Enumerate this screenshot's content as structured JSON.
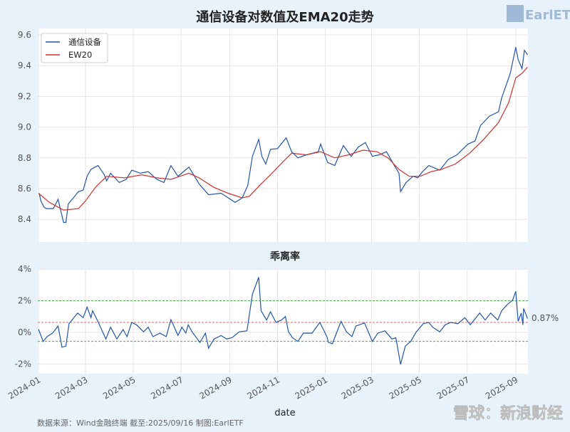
{
  "chart_data": [
    {
      "type": "line",
      "title": "通信设备对数值及EMA20走势",
      "ylim": [
        8.25,
        9.64
      ],
      "yticks": [
        "8.4",
        "8.6",
        "8.8",
        "9.0",
        "9.2",
        "9.4",
        "9.6"
      ],
      "ytick_values": [
        8.4,
        8.6,
        8.8,
        9.0,
        9.2,
        9.4,
        9.6
      ],
      "grid": true,
      "legend_position": "top-left",
      "series": [
        {
          "name": "通信设备",
          "color": "#2255aa",
          "points": [
            [
              "2024-01-02",
              8.57
            ],
            [
              "2024-01-04",
              8.52
            ],
            [
              "2024-01-08",
              8.48
            ],
            [
              "2024-01-11",
              8.47
            ],
            [
              "2024-01-20",
              8.47
            ],
            [
              "2024-01-26",
              8.53
            ],
            [
              "2024-02-02",
              8.38
            ],
            [
              "2024-02-05",
              8.38
            ],
            [
              "2024-02-08",
              8.5
            ],
            [
              "2024-02-21",
              8.58
            ],
            [
              "2024-02-27",
              8.59
            ],
            [
              "2024-03-03",
              8.68
            ],
            [
              "2024-03-08",
              8.725
            ],
            [
              "2024-03-17",
              8.75
            ],
            [
              "2024-03-25",
              8.69
            ],
            [
              "2024-03-28",
              8.65
            ],
            [
              "2024-04-02",
              8.7
            ],
            [
              "2024-04-13",
              8.64
            ],
            [
              "2024-04-22",
              8.66
            ],
            [
              "2024-04-29",
              8.72
            ],
            [
              "2024-05-10",
              8.7
            ],
            [
              "2024-05-20",
              8.71
            ],
            [
              "2024-05-31",
              8.66
            ],
            [
              "2024-06-09",
              8.64
            ],
            [
              "2024-06-18",
              8.75
            ],
            [
              "2024-06-27",
              8.68
            ],
            [
              "2024-07-11",
              8.74
            ],
            [
              "2024-07-24",
              8.63
            ],
            [
              "2024-08-05",
              8.56
            ],
            [
              "2024-08-21",
              8.57
            ],
            [
              "2024-09-08",
              8.51
            ],
            [
              "2024-09-17",
              8.54
            ],
            [
              "2024-09-24",
              8.62
            ],
            [
              "2024-09-30",
              8.81
            ],
            [
              "2024-10-08",
              8.92
            ],
            [
              "2024-10-12",
              8.81
            ],
            [
              "2024-10-17",
              8.76
            ],
            [
              "2024-10-23",
              8.855
            ],
            [
              "2024-11-01",
              8.86
            ],
            [
              "2024-11-12",
              8.93
            ],
            [
              "2024-11-19",
              8.84
            ],
            [
              "2024-11-27",
              8.8
            ],
            [
              "2024-12-08",
              8.82
            ],
            [
              "2024-12-23",
              8.84
            ],
            [
              "2024-12-26",
              8.89
            ],
            [
              "2025-01-04",
              8.77
            ],
            [
              "2025-01-13",
              8.75
            ],
            [
              "2025-01-24",
              8.88
            ],
            [
              "2025-02-03",
              8.81
            ],
            [
              "2025-02-12",
              8.87
            ],
            [
              "2025-02-21",
              8.9
            ],
            [
              "2025-03-02",
              8.81
            ],
            [
              "2025-03-11",
              8.82
            ],
            [
              "2025-03-20",
              8.84
            ],
            [
              "2025-03-29",
              8.76
            ],
            [
              "2025-04-05",
              8.7
            ],
            [
              "2025-04-07",
              8.58
            ],
            [
              "2025-04-14",
              8.64
            ],
            [
              "2025-04-23",
              8.68
            ],
            [
              "2025-04-29",
              8.67
            ],
            [
              "2025-05-05",
              8.71
            ],
            [
              "2025-05-13",
              8.75
            ],
            [
              "2025-05-27",
              8.72
            ],
            [
              "2025-06-07",
              8.79
            ],
            [
              "2025-06-18",
              8.82
            ],
            [
              "2025-07-02",
              8.89
            ],
            [
              "2025-07-11",
              8.91
            ],
            [
              "2025-07-18",
              9.01
            ],
            [
              "2025-07-29",
              9.07
            ],
            [
              "2025-08-10",
              9.1
            ],
            [
              "2025-08-14",
              9.19
            ],
            [
              "2025-08-25",
              9.35
            ],
            [
              "2025-09-01",
              9.52
            ],
            [
              "2025-09-04",
              9.44
            ],
            [
              "2025-09-09",
              9.38
            ],
            [
              "2025-09-12",
              9.5
            ],
            [
              "2025-09-16",
              9.47
            ]
          ]
        },
        {
          "name": "EW20",
          "color": "#d03030",
          "points": [
            [
              "2024-01-01",
              8.57
            ],
            [
              "2024-01-15",
              8.51
            ],
            [
              "2024-02-02",
              8.46
            ],
            [
              "2024-02-21",
              8.47
            ],
            [
              "2024-03-01",
              8.52
            ],
            [
              "2024-03-14",
              8.61
            ],
            [
              "2024-03-28",
              8.68
            ],
            [
              "2024-04-20",
              8.67
            ],
            [
              "2024-05-12",
              8.69
            ],
            [
              "2024-05-31",
              8.67
            ],
            [
              "2024-06-18",
              8.66
            ],
            [
              "2024-07-11",
              8.7
            ],
            [
              "2024-07-24",
              8.67
            ],
            [
              "2024-08-11",
              8.61
            ],
            [
              "2024-08-30",
              8.57
            ],
            [
              "2024-09-17",
              8.54
            ],
            [
              "2024-09-26",
              8.55
            ],
            [
              "2024-10-09",
              8.62
            ],
            [
              "2024-10-23",
              8.69
            ],
            [
              "2024-11-10",
              8.785
            ],
            [
              "2024-11-19",
              8.83
            ],
            [
              "2024-12-08",
              8.82
            ],
            [
              "2024-12-26",
              8.84
            ],
            [
              "2025-01-13",
              8.8
            ],
            [
              "2025-01-31",
              8.82
            ],
            [
              "2025-02-18",
              8.85
            ],
            [
              "2025-03-08",
              8.84
            ],
            [
              "2025-03-22",
              8.8
            ],
            [
              "2025-04-05",
              8.725
            ],
            [
              "2025-04-18",
              8.68
            ],
            [
              "2025-05-02",
              8.68
            ],
            [
              "2025-05-16",
              8.71
            ],
            [
              "2025-05-29",
              8.725
            ],
            [
              "2025-06-16",
              8.76
            ],
            [
              "2025-07-04",
              8.83
            ],
            [
              "2025-07-22",
              8.92
            ],
            [
              "2025-08-10",
              9.03
            ],
            [
              "2025-08-23",
              9.16
            ],
            [
              "2025-09-01",
              9.32
            ],
            [
              "2025-09-09",
              9.35
            ],
            [
              "2025-09-16",
              9.39
            ]
          ]
        }
      ]
    },
    {
      "type": "line",
      "title": "乖离率",
      "xlabel": "date",
      "ylim": [
        -2.6,
        4.05
      ],
      "yticks": [
        "-2%",
        "0%",
        "2%",
        "4%"
      ],
      "ytick_values": [
        -2,
        0,
        2,
        4
      ],
      "xticks": [
        "2024-01",
        "2024-03",
        "2024-05",
        "2024-07",
        "2024-09",
        "2024-11",
        "2025-01",
        "2025-03",
        "2025-05",
        "2025-07",
        "2025-09"
      ],
      "grid": true,
      "reference_lines": [
        {
          "value": 2.0,
          "color": "#44aa44",
          "style": "dashed"
        },
        {
          "value": 0.63,
          "color": "#e06060",
          "style": "dashed"
        },
        {
          "value": -0.57,
          "color": "#44aa44",
          "style": "dashed"
        }
      ],
      "last_value_label": "0.87%",
      "series": [
        {
          "color": "#2255aa",
          "points": [
            [
              "2024-01-01",
              0.2
            ],
            [
              "2024-01-07",
              -0.57
            ],
            [
              "2024-01-12",
              -0.27
            ],
            [
              "2024-01-19",
              -0.05
            ],
            [
              "2024-01-26",
              0.4
            ],
            [
              "2024-01-31",
              -0.94
            ],
            [
              "2024-02-05",
              -0.87
            ],
            [
              "2024-02-09",
              0.55
            ],
            [
              "2024-02-20",
              1.22
            ],
            [
              "2024-02-27",
              0.93
            ],
            [
              "2024-03-03",
              1.6
            ],
            [
              "2024-03-08",
              0.93
            ],
            [
              "2024-03-10",
              1.37
            ],
            [
              "2024-03-16",
              0.78
            ],
            [
              "2024-03-27",
              -0.42
            ],
            [
              "2024-04-02",
              0.33
            ],
            [
              "2024-04-10",
              -0.42
            ],
            [
              "2024-04-18",
              0.18
            ],
            [
              "2024-04-23",
              -0.27
            ],
            [
              "2024-04-29",
              0.63
            ],
            [
              "2024-05-05",
              0.48
            ],
            [
              "2024-05-14",
              0.03
            ],
            [
              "2024-05-20",
              0.33
            ],
            [
              "2024-05-26",
              -0.27
            ],
            [
              "2024-06-04",
              -0.05
            ],
            [
              "2024-06-12",
              -0.27
            ],
            [
              "2024-06-18",
              0.81
            ],
            [
              "2024-06-27",
              -0.2
            ],
            [
              "2024-07-02",
              0.33
            ],
            [
              "2024-07-07",
              -0.05
            ],
            [
              "2024-07-10",
              0.48
            ],
            [
              "2024-07-15",
              0.03
            ],
            [
              "2024-07-25",
              -0.64
            ],
            [
              "2024-08-01",
              -0.05
            ],
            [
              "2024-08-05",
              -1.0
            ],
            [
              "2024-08-12",
              -0.42
            ],
            [
              "2024-08-21",
              -0.2
            ],
            [
              "2024-08-28",
              -0.42
            ],
            [
              "2024-09-04",
              -0.34
            ],
            [
              "2024-09-13",
              0.03
            ],
            [
              "2024-09-23",
              0.1
            ],
            [
              "2024-09-30",
              2.42
            ],
            [
              "2024-10-08",
              3.49
            ],
            [
              "2024-10-11",
              1.37
            ],
            [
              "2024-10-18",
              0.78
            ],
            [
              "2024-10-23",
              1.3
            ],
            [
              "2024-10-30",
              0.63
            ],
            [
              "2024-11-06",
              0.78
            ],
            [
              "2024-11-11",
              1.0
            ],
            [
              "2024-11-15",
              0.03
            ],
            [
              "2024-11-20",
              -0.34
            ],
            [
              "2024-11-27",
              -0.57
            ],
            [
              "2024-12-04",
              -0.05
            ],
            [
              "2024-12-15",
              -0.05
            ],
            [
              "2024-12-25",
              0.63
            ],
            [
              "2025-01-03",
              -0.27
            ],
            [
              "2025-01-05",
              -0.64
            ],
            [
              "2025-01-10",
              -0.72
            ],
            [
              "2025-01-17",
              0.18
            ],
            [
              "2025-01-21",
              0.7
            ],
            [
              "2025-01-28",
              0.03
            ],
            [
              "2025-02-04",
              -0.27
            ],
            [
              "2025-02-09",
              0.4
            ],
            [
              "2025-02-20",
              0.6
            ],
            [
              "2025-03-02",
              -0.57
            ],
            [
              "2025-03-09",
              -0.05
            ],
            [
              "2025-03-18",
              0.1
            ],
            [
              "2025-03-27",
              -0.42
            ],
            [
              "2025-04-01",
              -0.34
            ],
            [
              "2025-04-07",
              -2.03
            ],
            [
              "2025-04-13",
              -0.87
            ],
            [
              "2025-04-20",
              -0.57
            ],
            [
              "2025-04-27",
              0.03
            ],
            [
              "2025-05-06",
              0.55
            ],
            [
              "2025-05-13",
              0.63
            ],
            [
              "2025-05-18",
              0.33
            ],
            [
              "2025-05-27",
              0.03
            ],
            [
              "2025-06-03",
              0.48
            ],
            [
              "2025-06-10",
              0.63
            ],
            [
              "2025-06-19",
              0.55
            ],
            [
              "2025-06-28",
              0.93
            ],
            [
              "2025-07-05",
              0.48
            ],
            [
              "2025-07-17",
              1.22
            ],
            [
              "2025-07-24",
              0.78
            ],
            [
              "2025-07-31",
              1.22
            ],
            [
              "2025-08-09",
              0.78
            ],
            [
              "2025-08-14",
              1.37
            ],
            [
              "2025-08-21",
              1.75
            ],
            [
              "2025-08-28",
              2.04
            ],
            [
              "2025-09-01",
              2.6
            ],
            [
              "2025-09-04",
              0.7
            ],
            [
              "2025-09-08",
              1.22
            ],
            [
              "2025-09-10",
              0.48
            ],
            [
              "2025-09-11",
              1.52
            ],
            [
              "2025-09-16",
              0.87
            ]
          ]
        }
      ]
    }
  ],
  "footer": {
    "source": "数据来源：Wind金融终端 截至:2025/09/16 制图:EarlETF"
  },
  "logo": {
    "text": "EarlETF"
  },
  "watermark": {
    "text": "雪球：新浪财经"
  }
}
